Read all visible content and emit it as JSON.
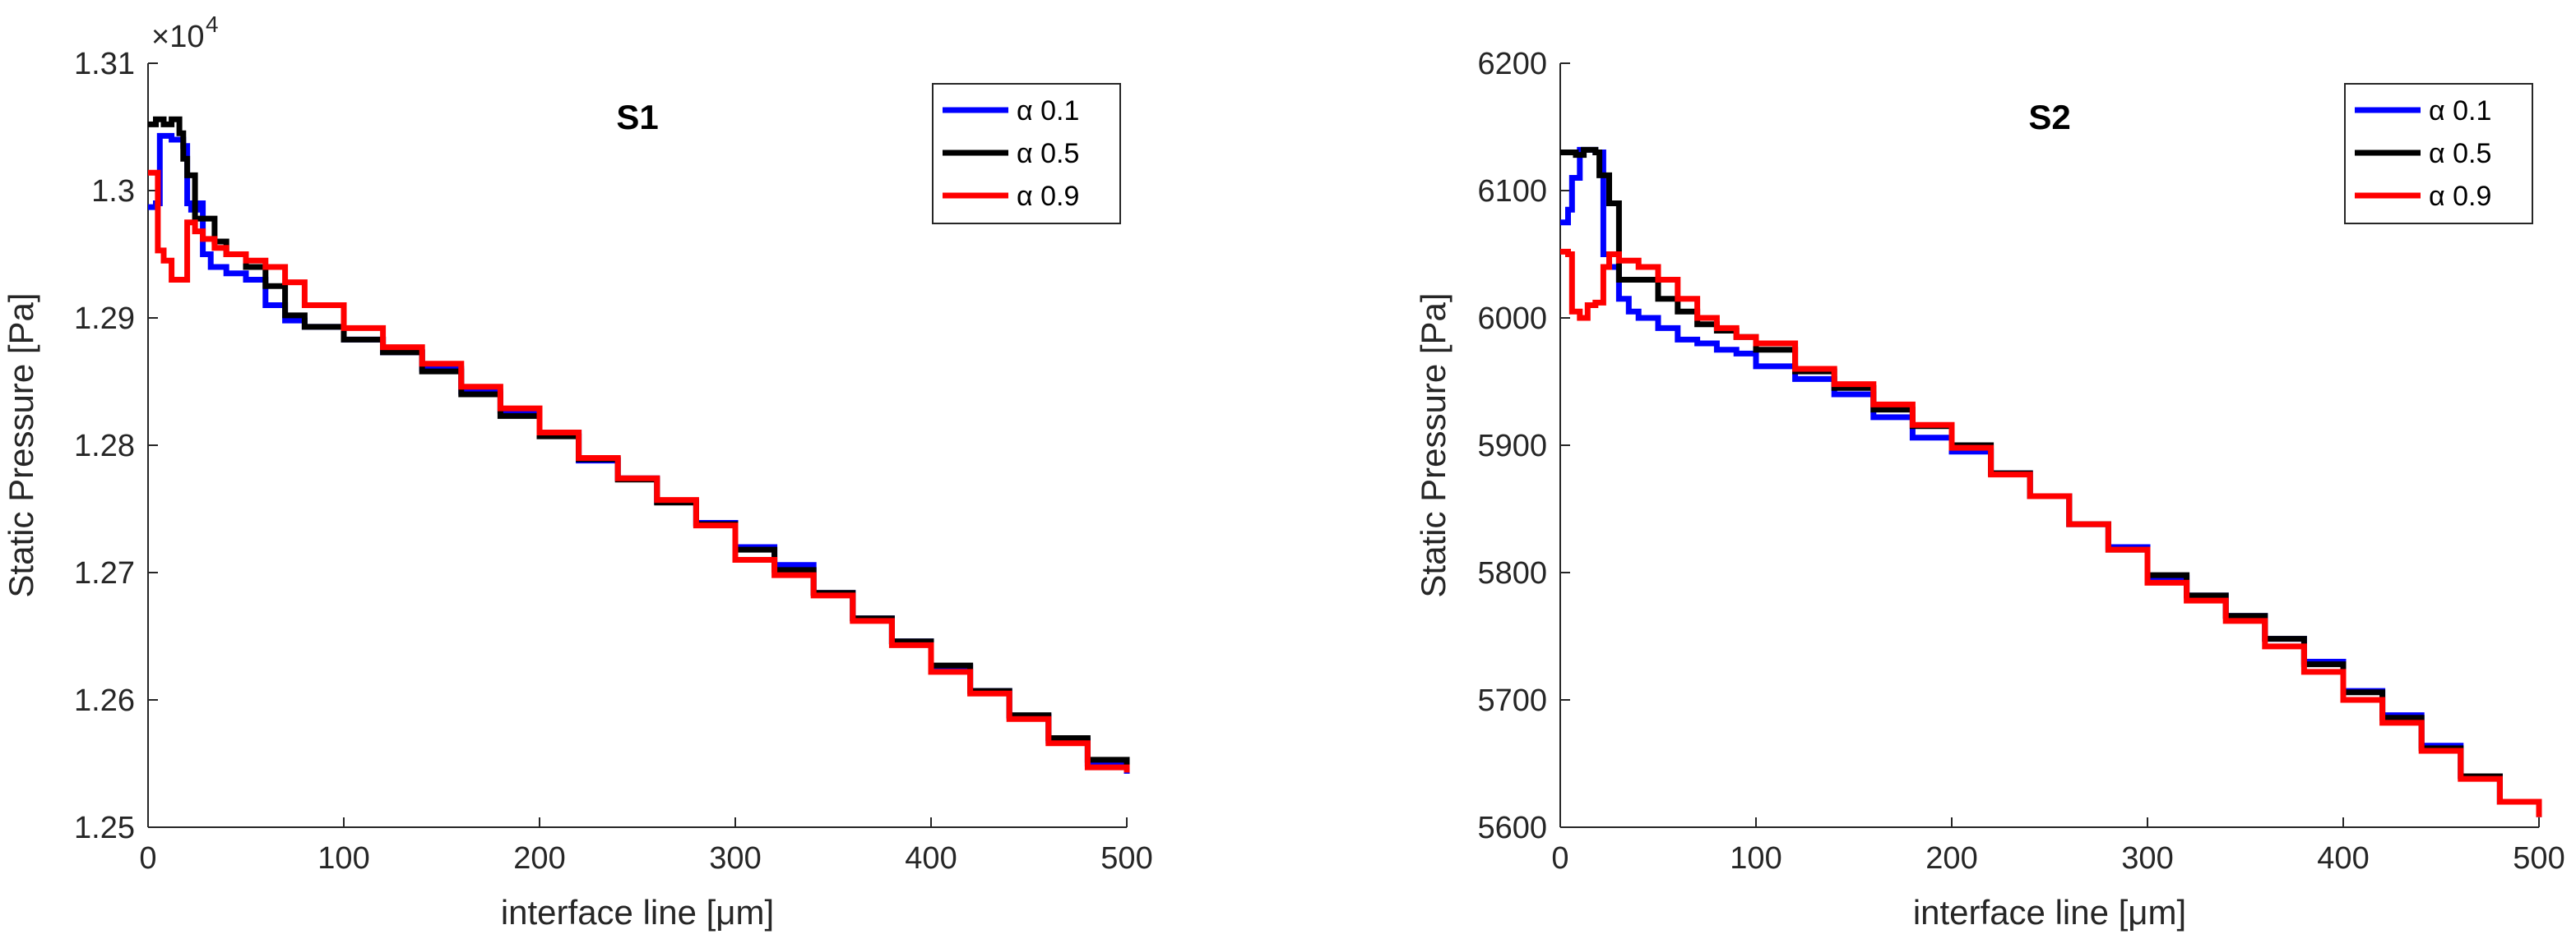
{
  "chart_data": [
    {
      "type": "line",
      "title": "S1",
      "xlabel": "interface line [μm]",
      "ylabel": "Static Pressure [Pa]",
      "xlim": [
        0,
        500
      ],
      "ylim": [
        12500,
        13100
      ],
      "x_ticks": [
        0,
        100,
        200,
        300,
        400,
        500
      ],
      "y_ticks": [
        12500,
        12600,
        12700,
        12800,
        12900,
        13000,
        13100
      ],
      "y_tick_labels": [
        "1.25",
        "1.26",
        "1.27",
        "1.28",
        "1.29",
        "1.3",
        "1.31"
      ],
      "y_exponent_label": "×10",
      "y_exponent_power": "4",
      "grid": false,
      "legend_position": "top-right",
      "series": [
        {
          "name": "α 0.1",
          "color": "#0000ff",
          "x": [
            0,
            4,
            6,
            12,
            18,
            20,
            22,
            26,
            28,
            32,
            40,
            50,
            60,
            70,
            80,
            100,
            120,
            140,
            160,
            180,
            200,
            220,
            240,
            260,
            280,
            300,
            320,
            340,
            360,
            380,
            400,
            420,
            440,
            460,
            480,
            500
          ],
          "y": [
            12987,
            12990,
            13043,
            13040,
            13035,
            12990,
            12985,
            12990,
            12950,
            12940,
            12935,
            12930,
            12910,
            12898,
            12893,
            12883,
            12873,
            12860,
            12842,
            12827,
            12810,
            12788,
            12774,
            12756,
            12739,
            12720,
            12706,
            12684,
            12664,
            12646,
            12626,
            12607,
            12587,
            12568,
            12550,
            12542
          ]
        },
        {
          "name": "α 0.5",
          "color": "#000000",
          "x": [
            0,
            4,
            8,
            12,
            16,
            18,
            20,
            24,
            28,
            34,
            40,
            50,
            60,
            70,
            80,
            100,
            120,
            140,
            160,
            180,
            200,
            220,
            240,
            260,
            280,
            300,
            320,
            340,
            360,
            380,
            400,
            420,
            440,
            460,
            480,
            500
          ],
          "y": [
            13052,
            13056,
            13052,
            13056,
            13045,
            13025,
            13012,
            12978,
            12978,
            12960,
            12950,
            12940,
            12925,
            12902,
            12893,
            12883,
            12873,
            12858,
            12840,
            12823,
            12807,
            12789,
            12773,
            12755,
            12738,
            12718,
            12702,
            12684,
            12664,
            12646,
            12627,
            12607,
            12588,
            12570,
            12553,
            12545
          ]
        },
        {
          "name": "α 0.9",
          "color": "#ff0000",
          "x": [
            0,
            3,
            5,
            8,
            12,
            16,
            20,
            24,
            28,
            34,
            40,
            50,
            60,
            70,
            80,
            100,
            120,
            140,
            160,
            180,
            200,
            220,
            240,
            260,
            280,
            300,
            320,
            340,
            360,
            380,
            400,
            420,
            440,
            460,
            480,
            500
          ],
          "y": [
            13014,
            13014,
            12953,
            12945,
            12930,
            12930,
            12975,
            12968,
            12962,
            12955,
            12950,
            12945,
            12940,
            12928,
            12910,
            12892,
            12877,
            12864,
            12846,
            12829,
            12810,
            12790,
            12774,
            12757,
            12737,
            12710,
            12698,
            12682,
            12662,
            12643,
            12622,
            12605,
            12585,
            12566,
            12547,
            12543
          ]
        }
      ]
    },
    {
      "type": "line",
      "title": "S2",
      "xlabel": "interface line [μm]",
      "ylabel": "Static Pressure [Pa]",
      "xlim": [
        0,
        500
      ],
      "ylim": [
        5600,
        6200
      ],
      "x_ticks": [
        0,
        100,
        200,
        300,
        400,
        500
      ],
      "y_ticks": [
        5600,
        5700,
        5800,
        5900,
        6000,
        6100,
        6200
      ],
      "y_tick_labels": [
        "5600",
        "5700",
        "5800",
        "5900",
        "6000",
        "6100",
        "6200"
      ],
      "grid": false,
      "legend_position": "top-right",
      "series": [
        {
          "name": "α 0.1",
          "color": "#0000ff",
          "x": [
            0,
            4,
            6,
            10,
            18,
            22,
            25,
            30,
            35,
            40,
            50,
            60,
            70,
            80,
            90,
            100,
            120,
            140,
            160,
            180,
            200,
            220,
            240,
            260,
            280,
            300,
            320,
            340,
            360,
            380,
            400,
            420,
            440,
            460,
            480,
            500
          ],
          "y": [
            6075,
            6085,
            6110,
            6132,
            6130,
            6050,
            6040,
            6015,
            6005,
            6000,
            5992,
            5983,
            5980,
            5975,
            5972,
            5962,
            5952,
            5940,
            5922,
            5906,
            5895,
            5878,
            5860,
            5838,
            5820,
            5796,
            5782,
            5766,
            5748,
            5730,
            5707,
            5688,
            5664,
            5640,
            5620,
            5608
          ]
        },
        {
          "name": "α 0.5",
          "color": "#000000",
          "x": [
            0,
            4,
            8,
            12,
            18,
            20,
            25,
            30,
            35,
            40,
            50,
            60,
            70,
            80,
            90,
            100,
            120,
            140,
            160,
            180,
            200,
            220,
            240,
            260,
            280,
            300,
            320,
            340,
            360,
            380,
            400,
            420,
            440,
            460,
            480,
            500
          ],
          "y": [
            6130,
            6130,
            6128,
            6132,
            6130,
            6112,
            6090,
            6030,
            6030,
            6030,
            6015,
            6005,
            5995,
            5990,
            5985,
            5975,
            5958,
            5945,
            5928,
            5915,
            5900,
            5878,
            5860,
            5838,
            5818,
            5798,
            5782,
            5766,
            5748,
            5728,
            5706,
            5686,
            5662,
            5640,
            5620,
            5608
          ]
        },
        {
          "name": "α 0.9",
          "color": "#ff0000",
          "x": [
            0,
            4,
            6,
            10,
            14,
            18,
            22,
            25,
            30,
            35,
            40,
            50,
            60,
            70,
            80,
            90,
            100,
            120,
            140,
            160,
            180,
            200,
            220,
            240,
            260,
            280,
            300,
            320,
            340,
            360,
            380,
            400,
            420,
            440,
            460,
            480,
            500
          ],
          "y": [
            6052,
            6050,
            6005,
            6000,
            6010,
            6012,
            6040,
            6050,
            6045,
            6045,
            6040,
            6030,
            6015,
            6000,
            5992,
            5985,
            5980,
            5960,
            5948,
            5932,
            5916,
            5898,
            5877,
            5860,
            5838,
            5818,
            5792,
            5778,
            5762,
            5742,
            5722,
            5700,
            5682,
            5660,
            5638,
            5620,
            5608
          ]
        }
      ]
    }
  ]
}
